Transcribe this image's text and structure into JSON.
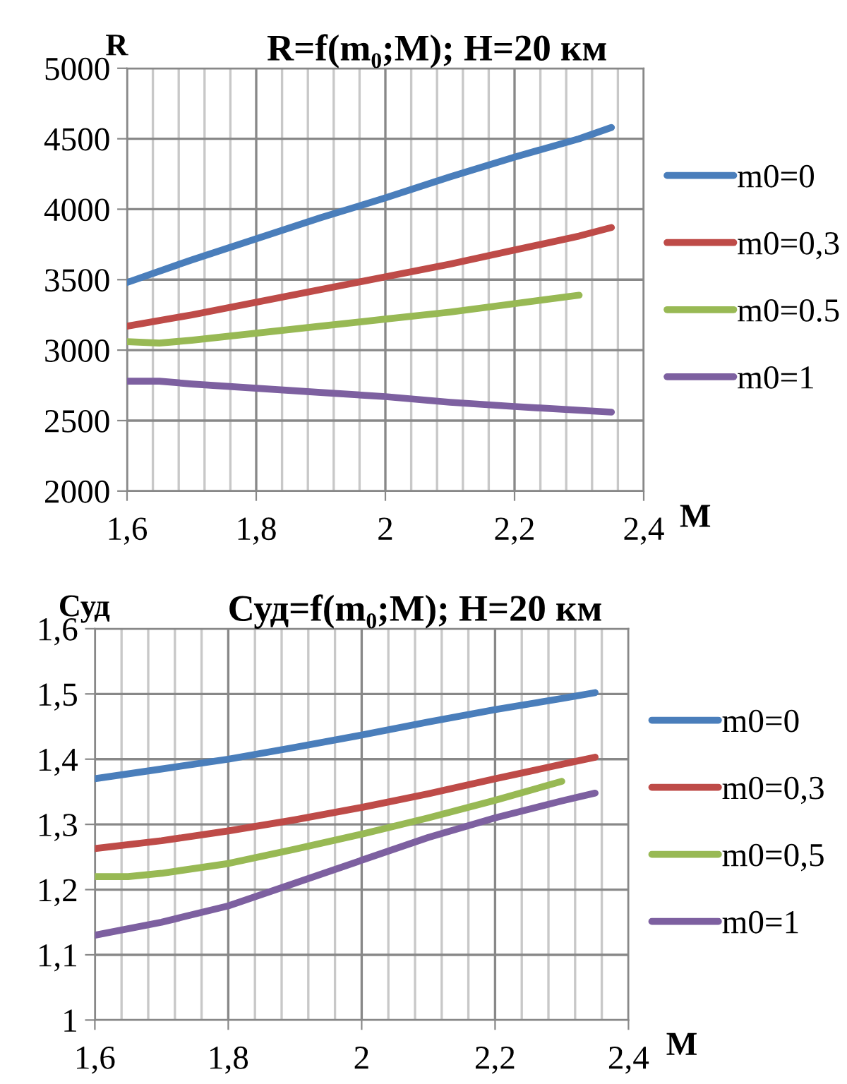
{
  "chart_data": [
    {
      "type": "line",
      "title": "R=f(m₀;M); H=20 км",
      "xlabel": "M",
      "ylabel": "R",
      "x": [
        1.6,
        1.7,
        1.8,
        1.9,
        2.0,
        2.1,
        2.2,
        2.3,
        2.35
      ],
      "series": [
        {
          "name": "m0=0",
          "color": "#4a7ebb",
          "values": [
            3480,
            3640,
            3790,
            3940,
            4080,
            4230,
            4370,
            4500,
            4580
          ]
        },
        {
          "name": "m0=0,3",
          "color": "#be4b48",
          "values": [
            3170,
            3250,
            3340,
            3430,
            3520,
            3610,
            3710,
            3810,
            3870
          ]
        },
        {
          "name": "m0=0.5",
          "color": "#98b954",
          "x": [
            1.6,
            1.65,
            1.7,
            1.8,
            1.9,
            2.0,
            2.1,
            2.2,
            2.3
          ],
          "values": [
            3060,
            3050,
            3070,
            3120,
            3170,
            3220,
            3270,
            3330,
            3390
          ]
        },
        {
          "name": "m0=1",
          "color": "#7d60a0",
          "x": [
            1.6,
            1.65,
            1.7,
            1.8,
            1.9,
            2.0,
            2.1,
            2.2,
            2.35
          ],
          "values": [
            2780,
            2780,
            2760,
            2730,
            2700,
            2670,
            2630,
            2600,
            2560
          ]
        }
      ],
      "xlim": [
        1.6,
        2.4
      ],
      "xticks": [
        {
          "value": 1.6,
          "label": "1,6"
        },
        {
          "value": 1.8,
          "label": "1,8"
        },
        {
          "value": 2.0,
          "label": "2"
        },
        {
          "value": 2.2,
          "label": "2,2"
        },
        {
          "value": 2.4,
          "label": "2,4"
        }
      ],
      "ylim": [
        2000,
        5000
      ],
      "yticks": [
        2000,
        2500,
        3000,
        3500,
        4000,
        4500,
        5000
      ],
      "grid": true,
      "legend": "right",
      "marker": "none",
      "line_style": "solid"
    },
    {
      "type": "line",
      "title": "Суд=f(m₀;M); H=20 км",
      "xlabel": "M",
      "ylabel": "Суд",
      "x": [
        1.6,
        1.7,
        1.8,
        1.9,
        2.0,
        2.1,
        2.2,
        2.3,
        2.35
      ],
      "series": [
        {
          "name": "m0=0",
          "color": "#4a7ebb",
          "values": [
            1.37,
            1.385,
            1.4,
            1.418,
            1.437,
            1.457,
            1.476,
            1.493,
            1.502
          ]
        },
        {
          "name": "m0=0,3",
          "color": "#be4b48",
          "values": [
            1.263,
            1.275,
            1.29,
            1.307,
            1.326,
            1.347,
            1.37,
            1.392,
            1.403
          ]
        },
        {
          "name": "m0=0,5",
          "color": "#98b954",
          "x": [
            1.6,
            1.65,
            1.7,
            1.8,
            1.9,
            2.0,
            2.1,
            2.2,
            2.3
          ],
          "values": [
            1.22,
            1.22,
            1.225,
            1.24,
            1.262,
            1.285,
            1.31,
            1.337,
            1.366
          ]
        },
        {
          "name": "m0=1",
          "color": "#7d60a0",
          "values": [
            1.13,
            1.15,
            1.175,
            1.21,
            1.245,
            1.28,
            1.31,
            1.336,
            1.348
          ]
        }
      ],
      "xlim": [
        1.6,
        2.4
      ],
      "xticks": [
        {
          "value": 1.6,
          "label": "1,6"
        },
        {
          "value": 1.8,
          "label": "1,8"
        },
        {
          "value": 2.0,
          "label": "2"
        },
        {
          "value": 2.2,
          "label": "2,2"
        },
        {
          "value": 2.4,
          "label": "2,4"
        }
      ],
      "ylim": [
        1.0,
        1.6
      ],
      "yticks": [
        1,
        {
          "value": 1.1,
          "label": "1,1"
        },
        {
          "value": 1.2,
          "label": "1,2"
        },
        {
          "value": 1.3,
          "label": "1,3"
        },
        {
          "value": 1.4,
          "label": "1,4"
        },
        {
          "value": 1.5,
          "label": "1,5"
        },
        {
          "value": 1.6,
          "label": "1,6"
        }
      ],
      "grid": true,
      "legend": "right",
      "marker": "none",
      "line_style": "solid"
    }
  ]
}
